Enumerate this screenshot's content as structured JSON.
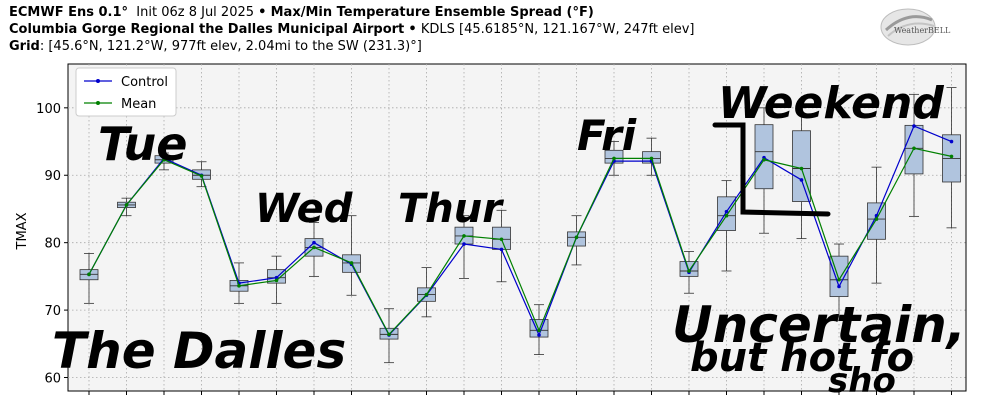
{
  "header": {
    "line1_model": "ECMWF Ens 0.1°",
    "line1_init": "Init 06z 8 Jul 2025",
    "line1_sep": "•",
    "line1_title": "Max/Min Temperature Ensemble Spread (°F)",
    "line2_station": "Columbia Gorge Regional the Dalles Municipal Airport",
    "line2_sep": "•",
    "line2_detail": "KDLS [45.6185°N, 121.167°W, 247ft elev]",
    "line3_label": "Grid",
    "line3_detail": ": [45.6°N, 121.2°W, 977ft elev, 2.04mi to the SW (231.3)°]"
  },
  "logo_text": "WeatherBELL",
  "annotations": [
    "Tue",
    "Wed",
    "Thur",
    "Fri",
    "Weekend",
    "The Dalles",
    "Uncertain, but hot fo sho"
  ],
  "chart_data": {
    "type": "box",
    "ylabel": "TMAX",
    "ylim": [
      58,
      106.5
    ],
    "yticks": [
      60,
      70,
      80,
      90,
      100
    ],
    "grid": true,
    "legend_position": "top-left",
    "colors": {
      "control": "#0000cc",
      "mean": "#008000",
      "box_fill": "#b0c4de",
      "plot_bg": "#f4f4f4"
    },
    "series": [
      {
        "name": "Control",
        "values": [
          75.3,
          85.6,
          92.5,
          90.0,
          74.0,
          74.8,
          80.0,
          76.8,
          66.3,
          72.2,
          79.8,
          79.0,
          66.3,
          80.8,
          92.1,
          92.1,
          75.6,
          84.6,
          92.6,
          89.3,
          73.5,
          84.0,
          97.3,
          95.0
        ]
      },
      {
        "name": "Mean",
        "values": [
          75.3,
          85.6,
          92.3,
          89.9,
          73.6,
          74.4,
          79.3,
          77.0,
          66.4,
          72.3,
          81.0,
          80.5,
          67.0,
          80.8,
          92.5,
          92.5,
          75.8,
          84.0,
          92.3,
          91.0,
          74.5,
          83.5,
          94.0,
          92.8
        ]
      }
    ],
    "boxes": [
      {
        "min": 71.0,
        "q1": 74.5,
        "median": 75.3,
        "q3": 76.0,
        "max": 78.4
      },
      {
        "min": 84.0,
        "q1": 85.2,
        "median": 85.6,
        "q3": 86.0,
        "max": 86.6
      },
      {
        "min": 90.8,
        "q1": 91.8,
        "median": 92.3,
        "q3": 92.9,
        "max": 93.3
      },
      {
        "min": 88.3,
        "q1": 89.4,
        "median": 90.0,
        "q3": 90.8,
        "max": 92.0
      },
      {
        "min": 71.0,
        "q1": 72.8,
        "median": 73.6,
        "q3": 74.4,
        "max": 77.0
      },
      {
        "min": 71.0,
        "q1": 74.0,
        "median": 74.8,
        "q3": 76.0,
        "max": 78.0
      },
      {
        "min": 75.0,
        "q1": 78.0,
        "median": 79.3,
        "q3": 80.6,
        "max": 83.0
      },
      {
        "min": 72.2,
        "q1": 75.6,
        "median": 77.0,
        "q3": 78.2,
        "max": 84.0
      },
      {
        "min": 62.2,
        "q1": 65.7,
        "median": 66.4,
        "q3": 67.3,
        "max": 70.2
      },
      {
        "min": 69.0,
        "q1": 71.3,
        "median": 72.3,
        "q3": 73.3,
        "max": 76.3
      },
      {
        "min": 74.7,
        "q1": 79.8,
        "median": 81.0,
        "q3": 82.3,
        "max": 84.0
      },
      {
        "min": 74.2,
        "q1": 79.0,
        "median": 80.5,
        "q3": 82.3,
        "max": 84.8
      },
      {
        "min": 63.4,
        "q1": 66.0,
        "median": 67.0,
        "q3": 68.6,
        "max": 70.8
      },
      {
        "min": 76.7,
        "q1": 79.5,
        "median": 80.8,
        "q3": 81.6,
        "max": 84.0
      },
      {
        "min": 90.0,
        "q1": 91.8,
        "median": 92.5,
        "q3": 93.7,
        "max": 95.0
      },
      {
        "min": 90.0,
        "q1": 91.8,
        "median": 92.5,
        "q3": 93.5,
        "max": 95.5
      },
      {
        "min": 72.5,
        "q1": 75.0,
        "median": 75.8,
        "q3": 77.2,
        "max": 78.7
      },
      {
        "min": 75.8,
        "q1": 81.8,
        "median": 84.0,
        "q3": 86.8,
        "max": 89.2
      },
      {
        "min": 81.4,
        "q1": 88.0,
        "median": 93.5,
        "q3": 97.5,
        "max": 100.0
      },
      {
        "min": 80.6,
        "q1": 86.1,
        "median": 91.0,
        "q3": 96.6,
        "max": 100.0
      },
      {
        "min": 68.5,
        "q1": 72.0,
        "median": 74.5,
        "q3": 78.0,
        "max": 79.8
      },
      {
        "min": 74.0,
        "q1": 80.5,
        "median": 83.5,
        "q3": 85.9,
        "max": 91.2
      },
      {
        "min": 83.9,
        "q1": 90.2,
        "median": 94.0,
        "q3": 97.4,
        "max": 102.0
      },
      {
        "min": 82.2,
        "q1": 89.0,
        "median": 92.5,
        "q3": 96.0,
        "max": 103.0
      }
    ]
  }
}
